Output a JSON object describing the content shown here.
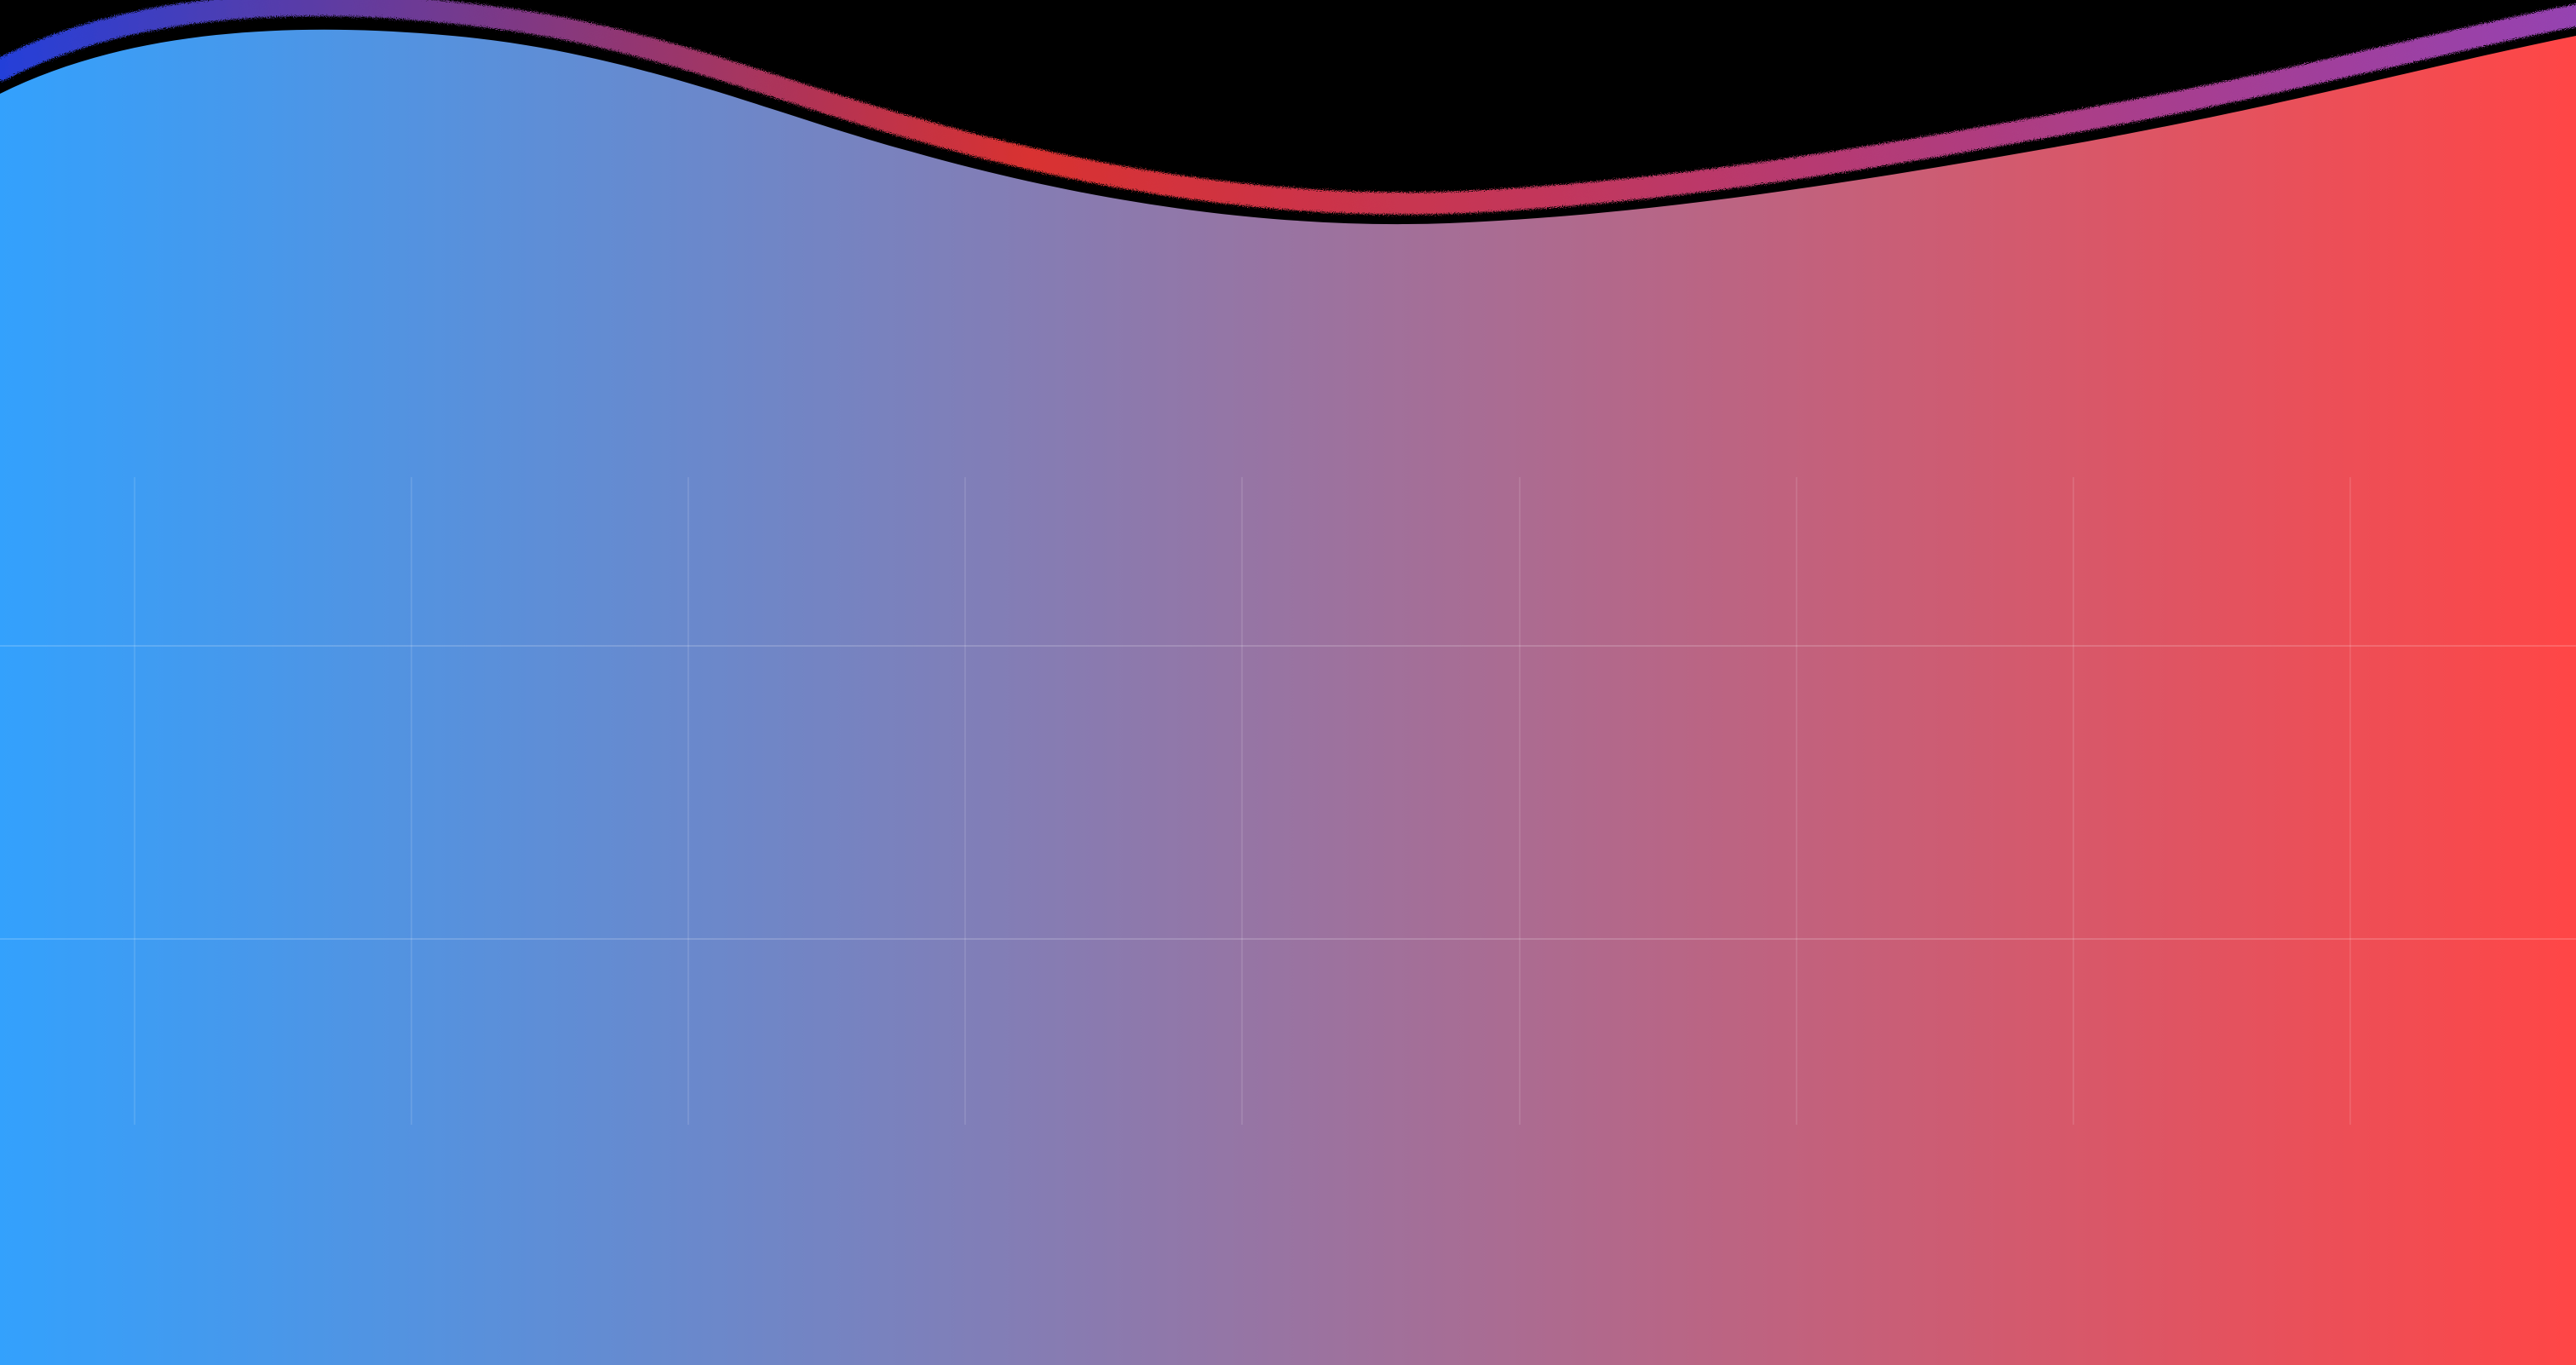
{
  "background": {
    "color": "#000000"
  },
  "wave": {
    "gradient_start_color": "#33a1fd",
    "gradient_end_color": "#ff4646",
    "edge_colors": [
      "#2b4cff",
      "#ff3a3a",
      "#b04fd0"
    ]
  },
  "grid": {
    "line_color": "#ffffff",
    "visible": true
  }
}
